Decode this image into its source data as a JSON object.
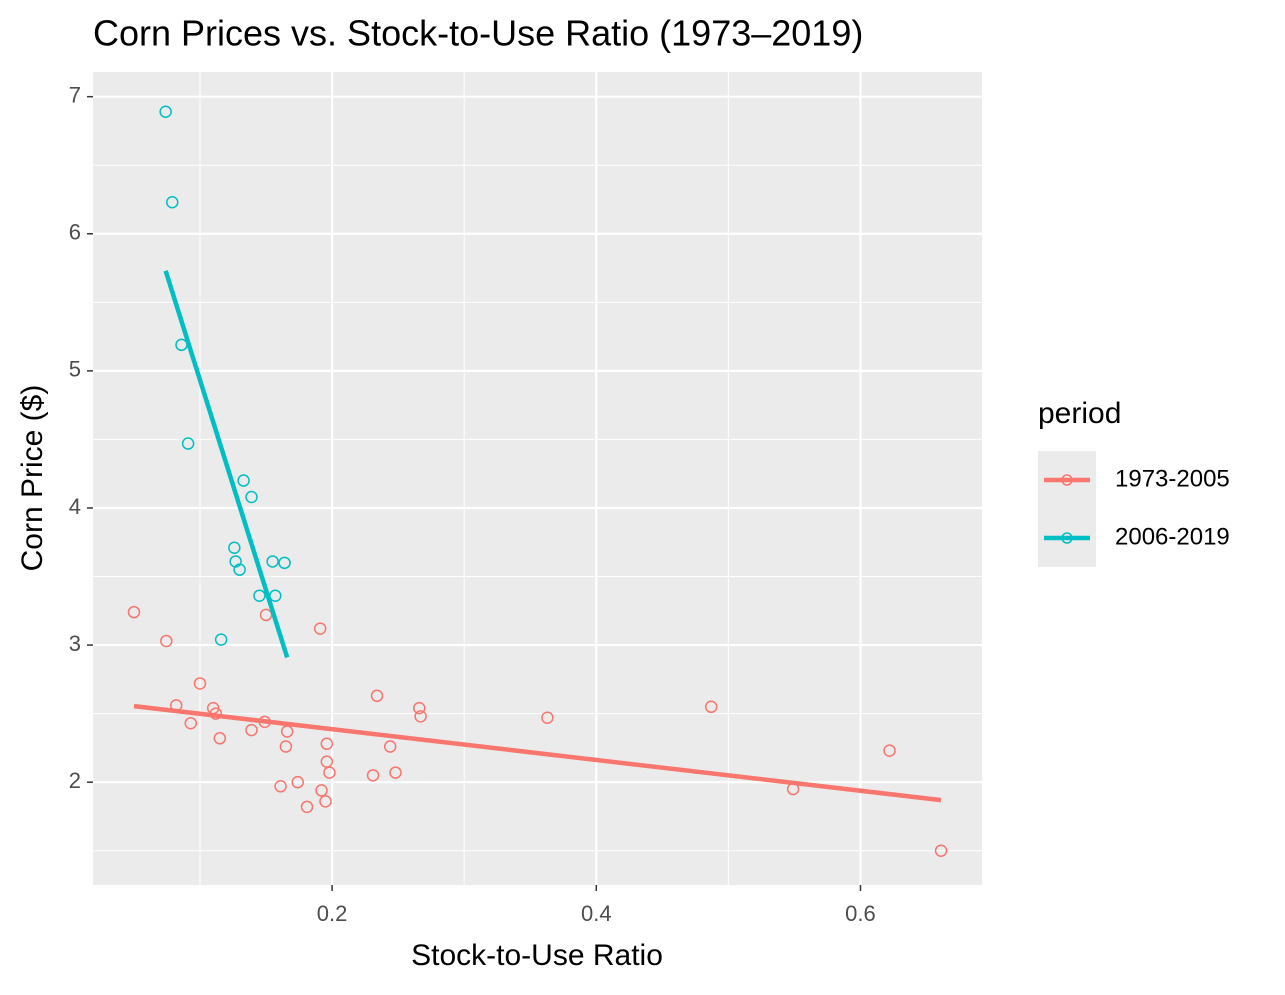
{
  "chart_data": {
    "type": "scatter",
    "title": "Corn Prices vs. Stock-to-Use Ratio (1973–2019)",
    "x_label": "Stock-to-Use Ratio",
    "y_label": "Corn Price ($)",
    "legend_title": "period",
    "legend": "right",
    "grid": true,
    "xlim": [
      0.019,
      0.692
    ],
    "ylim": [
      1.25,
      7.18
    ],
    "xticks": [
      0.2,
      0.4,
      0.6
    ],
    "yticks": [
      2,
      3,
      4,
      5,
      6,
      7
    ],
    "xminor": [
      0.1,
      0.3,
      0.5
    ],
    "yminor": [
      1.5,
      2.5,
      3.5,
      4.5,
      5.5,
      6.5
    ],
    "series": [
      {
        "name": "1973-2005",
        "color": "#F8766D",
        "x": [
          0.05,
          0.0745,
          0.082,
          0.1,
          0.11,
          0.112,
          0.093,
          0.115,
          0.139,
          0.149,
          0.15,
          0.166,
          0.165,
          0.161,
          0.174,
          0.181,
          0.191,
          0.192,
          0.195,
          0.196,
          0.196,
          0.198,
          0.231,
          0.234,
          0.244,
          0.248,
          0.266,
          0.267,
          0.363,
          0.487,
          0.549,
          0.622,
          0.661
        ],
        "values": [
          3.24,
          3.03,
          2.56,
          2.72,
          2.54,
          2.5,
          2.43,
          2.32,
          2.38,
          2.44,
          3.22,
          2.37,
          2.26,
          1.97,
          2.0,
          1.82,
          3.12,
          1.94,
          1.86,
          2.28,
          2.15,
          2.07,
          2.05,
          2.63,
          2.26,
          2.07,
          2.54,
          2.48,
          2.47,
          2.55,
          1.95,
          2.23,
          1.5
        ],
        "trend": {
          "x": [
            0.05,
            0.661
          ],
          "values": [
            2.555,
            1.869
          ]
        }
      },
      {
        "name": "2006-2019",
        "color": "#00BFC4",
        "x": [
          0.074,
          0.079,
          0.086,
          0.091,
          0.133,
          0.139,
          0.126,
          0.127,
          0.13,
          0.155,
          0.164,
          0.145,
          0.157,
          0.116
        ],
        "values": [
          6.89,
          6.23,
          5.19,
          4.47,
          4.2,
          4.08,
          3.71,
          3.61,
          3.55,
          3.61,
          3.6,
          3.36,
          3.36,
          3.04
        ],
        "trend": {
          "x": [
            0.074,
            0.166
          ],
          "values": [
            5.73,
            2.91
          ]
        }
      }
    ]
  }
}
